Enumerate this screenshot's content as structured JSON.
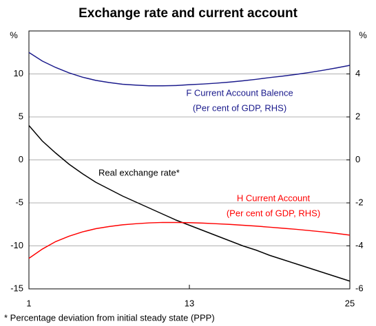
{
  "chart_data": {
    "type": "line",
    "title": "Exchange rate and current account",
    "ylabel": "%",
    "y2label": "%",
    "footnote": "* Percentage deviation from initial steady state (PPP)",
    "x": [
      1,
      2,
      3,
      4,
      5,
      6,
      7,
      8,
      9,
      10,
      11,
      12,
      13,
      14,
      15,
      16,
      17,
      18,
      19,
      20,
      21,
      22,
      23,
      24,
      25
    ],
    "xlim": [
      1,
      25
    ],
    "xticks": [
      1,
      13,
      25
    ],
    "ylim": [
      -15,
      15
    ],
    "yticks": [
      -15,
      -10,
      -5,
      0,
      5,
      10
    ],
    "y2lim": [
      -6,
      6
    ],
    "y2ticks": [
      -6,
      -4,
      -2,
      0,
      2,
      4
    ],
    "grid": true,
    "annotations": [
      "F Current Account Balence",
      "(Per cent of GDP, RHS)",
      "Real exchange rate*",
      "H Current Account",
      "(Per cent of GDP, RHS)"
    ],
    "series": [
      {
        "name": "Real exchange rate",
        "color": "#000000",
        "values": [
          4.0,
          2.2,
          0.8,
          -0.5,
          -1.6,
          -2.6,
          -3.4,
          -4.2,
          -4.9,
          -5.6,
          -6.3,
          -7.0,
          -7.6,
          -8.2,
          -8.8,
          -9.4,
          -10.0,
          -10.5,
          -11.1,
          -11.6,
          -12.1,
          -12.6,
          -13.1,
          -13.6,
          -14.1
        ]
      },
      {
        "name": "F Current Account Balence",
        "color": "#1a1a8c",
        "axis": "y2",
        "values": [
          5.0,
          4.6,
          4.3,
          4.05,
          3.85,
          3.7,
          3.6,
          3.52,
          3.48,
          3.45,
          3.45,
          3.46,
          3.5,
          3.53,
          3.57,
          3.62,
          3.68,
          3.75,
          3.83,
          3.9,
          3.98,
          4.07,
          4.17,
          4.28,
          4.4
        ]
      },
      {
        "name": "H Current Account",
        "color": "#ff0000",
        "axis": "y2",
        "values": [
          -4.58,
          -4.15,
          -3.8,
          -3.55,
          -3.35,
          -3.2,
          -3.1,
          -3.02,
          -2.97,
          -2.93,
          -2.91,
          -2.91,
          -2.92,
          -2.94,
          -2.97,
          -3.0,
          -3.04,
          -3.08,
          -3.13,
          -3.18,
          -3.23,
          -3.29,
          -3.35,
          -3.42,
          -3.5
        ]
      }
    ]
  }
}
